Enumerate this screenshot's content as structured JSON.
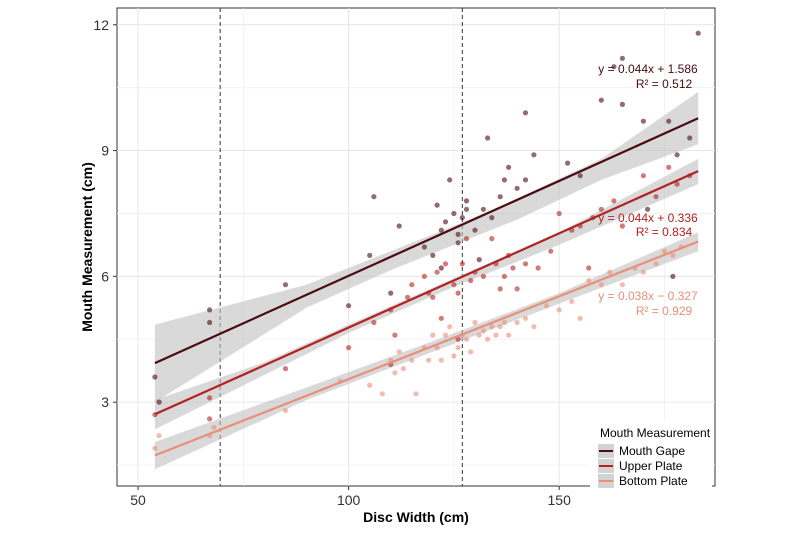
{
  "chart_data": {
    "type": "scatter",
    "xlabel": "Disc Width (cm)",
    "ylabel": "Mouth Measurement (cm)",
    "xlim": [
      45,
      187
    ],
    "ylim": [
      1.0,
      12.4
    ],
    "x_ticks": [
      50,
      100,
      150
    ],
    "y_ticks": [
      3,
      6,
      9,
      12
    ],
    "x_tick_labels": [
      "50",
      "100",
      "150"
    ],
    "y_tick_labels": [
      "3",
      "6",
      "9",
      "12"
    ],
    "grid": true,
    "vlines": [
      69.5,
      127.0
    ],
    "legend": {
      "title": "Mouth Measurement",
      "position": "bottom-right"
    },
    "series": [
      {
        "name": "Mouth Gape",
        "color": "#4a0c10",
        "line": {
          "x": [
            54,
            183
          ],
          "y": [
            3.93,
            9.77
          ]
        },
        "band_upper": [
          [
            54,
            4.85
          ],
          [
            90,
            5.8
          ],
          [
            110,
            6.6
          ],
          [
            125,
            7.2
          ],
          [
            140,
            7.85
          ],
          [
            160,
            8.8
          ],
          [
            183,
            10.4
          ]
        ],
        "band_lower": [
          [
            183,
            9.15
          ],
          [
            160,
            8.3
          ],
          [
            140,
            7.35
          ],
          [
            125,
            6.75
          ],
          [
            110,
            6.15
          ],
          [
            90,
            5.25
          ],
          [
            54,
            3.0
          ]
        ],
        "equation": "y = 0.044x + 1.586",
        "r2": "R² = 0.512",
        "points": [
          [
            54,
            3.6
          ],
          [
            55,
            3.0
          ],
          [
            67,
            5.2
          ],
          [
            67,
            4.9
          ],
          [
            85,
            5.8
          ],
          [
            100,
            5.3
          ],
          [
            105,
            6.5
          ],
          [
            106,
            7.9
          ],
          [
            110,
            5.6
          ],
          [
            112,
            7.2
          ],
          [
            118,
            6.7
          ],
          [
            120,
            6.5
          ],
          [
            121,
            7.7
          ],
          [
            122,
            7.1
          ],
          [
            122,
            6.2
          ],
          [
            123,
            7.3
          ],
          [
            124,
            8.3
          ],
          [
            125,
            7.5
          ],
          [
            126,
            7.0
          ],
          [
            126,
            6.8
          ],
          [
            127,
            7.4
          ],
          [
            128,
            7.8
          ],
          [
            128,
            7.6
          ],
          [
            130,
            7.1
          ],
          [
            131,
            6.4
          ],
          [
            132,
            7.6
          ],
          [
            133,
            9.3
          ],
          [
            134,
            7.4
          ],
          [
            136,
            7.9
          ],
          [
            137,
            8.3
          ],
          [
            138,
            8.6
          ],
          [
            140,
            8.1
          ],
          [
            142,
            8.3
          ],
          [
            142,
            9.9
          ],
          [
            144,
            8.9
          ],
          [
            152,
            8.7
          ],
          [
            155,
            8.4
          ],
          [
            160,
            10.2
          ],
          [
            163,
            11.0
          ],
          [
            165,
            10.1
          ],
          [
            165,
            11.2
          ],
          [
            170,
            9.7
          ],
          [
            171,
            7.6
          ],
          [
            176,
            9.7
          ],
          [
            177,
            6.0
          ],
          [
            178,
            8.9
          ],
          [
            181,
            9.3
          ],
          [
            183,
            11.8
          ]
        ]
      },
      {
        "name": "Upper Plate",
        "color": "#b22222",
        "line": {
          "x": [
            54,
            183
          ],
          "y": [
            2.71,
            8.51
          ]
        },
        "band_upper": [
          [
            54,
            3.05
          ],
          [
            80,
            3.95
          ],
          [
            100,
            4.85
          ],
          [
            125,
            5.95
          ],
          [
            150,
            7.05
          ],
          [
            183,
            8.8
          ]
        ],
        "band_lower": [
          [
            183,
            8.2
          ],
          [
            150,
            6.75
          ],
          [
            125,
            5.75
          ],
          [
            100,
            4.65
          ],
          [
            80,
            3.65
          ],
          [
            54,
            2.35
          ]
        ],
        "equation": "y = 0.044x + 0.336",
        "r2": "R² = 0.834",
        "points": [
          [
            54,
            2.7
          ],
          [
            67,
            2.6
          ],
          [
            67,
            3.1
          ],
          [
            85,
            3.8
          ],
          [
            100,
            4.3
          ],
          [
            106,
            4.9
          ],
          [
            110,
            5.2
          ],
          [
            110,
            3.9
          ],
          [
            111,
            4.6
          ],
          [
            114,
            5.5
          ],
          [
            115,
            5.8
          ],
          [
            118,
            6.0
          ],
          [
            119,
            5.6
          ],
          [
            120,
            5.5
          ],
          [
            121,
            6.1
          ],
          [
            122,
            5.0
          ],
          [
            123,
            6.3
          ],
          [
            125,
            5.8
          ],
          [
            126,
            5.6
          ],
          [
            126,
            4.5
          ],
          [
            127,
            6.3
          ],
          [
            128,
            6.9
          ],
          [
            129,
            5.9
          ],
          [
            130,
            6.1
          ],
          [
            132,
            6.0
          ],
          [
            134,
            6.9
          ],
          [
            135,
            6.3
          ],
          [
            136,
            5.7
          ],
          [
            137,
            6.0
          ],
          [
            138,
            6.5
          ],
          [
            139,
            6.2
          ],
          [
            140,
            5.7
          ],
          [
            142,
            6.3
          ],
          [
            145,
            6.2
          ],
          [
            148,
            6.6
          ],
          [
            150,
            7.5
          ],
          [
            153,
            7.1
          ],
          [
            155,
            7.2
          ],
          [
            157,
            6.2
          ],
          [
            158,
            7.4
          ],
          [
            160,
            7.6
          ],
          [
            163,
            7.8
          ],
          [
            165,
            7.2
          ],
          [
            170,
            8.4
          ],
          [
            173,
            7.9
          ],
          [
            176,
            8.6
          ],
          [
            178,
            8.2
          ],
          [
            181,
            8.4
          ]
        ]
      },
      {
        "name": "Bottom Plate",
        "color": "#e8907a",
        "line": {
          "x": [
            54,
            183
          ],
          "y": [
            1.73,
            6.83
          ]
        },
        "band_upper": [
          [
            54,
            2.05
          ],
          [
            90,
            3.35
          ],
          [
            120,
            4.45
          ],
          [
            150,
            5.6
          ],
          [
            183,
            7.05
          ]
        ],
        "band_lower": [
          [
            183,
            6.6
          ],
          [
            150,
            5.35
          ],
          [
            120,
            4.2
          ],
          [
            90,
            3.05
          ],
          [
            54,
            1.4
          ]
        ],
        "equation": "y = 0.038x − 0.327",
        "r2": "R² = 0.929",
        "points": [
          [
            54,
            1.9
          ],
          [
            55,
            2.2
          ],
          [
            67,
            2.2
          ],
          [
            68,
            2.4
          ],
          [
            85,
            2.8
          ],
          [
            98,
            3.5
          ],
          [
            105,
            3.4
          ],
          [
            108,
            3.2
          ],
          [
            110,
            4.0
          ],
          [
            111,
            3.7
          ],
          [
            112,
            4.2
          ],
          [
            113,
            3.8
          ],
          [
            115,
            4.0
          ],
          [
            116,
            3.2
          ],
          [
            118,
            4.3
          ],
          [
            119,
            4.0
          ],
          [
            120,
            4.6
          ],
          [
            121,
            4.3
          ],
          [
            122,
            4.0
          ],
          [
            123,
            4.6
          ],
          [
            124,
            4.8
          ],
          [
            125,
            4.1
          ],
          [
            126,
            4.3
          ],
          [
            127,
            4.6
          ],
          [
            128,
            4.5
          ],
          [
            129,
            4.2
          ],
          [
            130,
            4.9
          ],
          [
            131,
            4.6
          ],
          [
            132,
            4.7
          ],
          [
            133,
            4.5
          ],
          [
            134,
            4.8
          ],
          [
            135,
            4.6
          ],
          [
            136,
            4.8
          ],
          [
            137,
            4.9
          ],
          [
            138,
            4.6
          ],
          [
            140,
            4.9
          ],
          [
            142,
            5.0
          ],
          [
            144,
            4.8
          ],
          [
            147,
            5.3
          ],
          [
            150,
            5.2
          ],
          [
            153,
            5.4
          ],
          [
            155,
            5.0
          ],
          [
            157,
            5.9
          ],
          [
            160,
            5.8
          ],
          [
            162,
            6.1
          ],
          [
            165,
            5.8
          ],
          [
            168,
            6.2
          ],
          [
            170,
            6.1
          ],
          [
            173,
            6.3
          ],
          [
            175,
            6.6
          ],
          [
            177,
            6.5
          ],
          [
            179,
            6.7
          ]
        ]
      }
    ]
  }
}
